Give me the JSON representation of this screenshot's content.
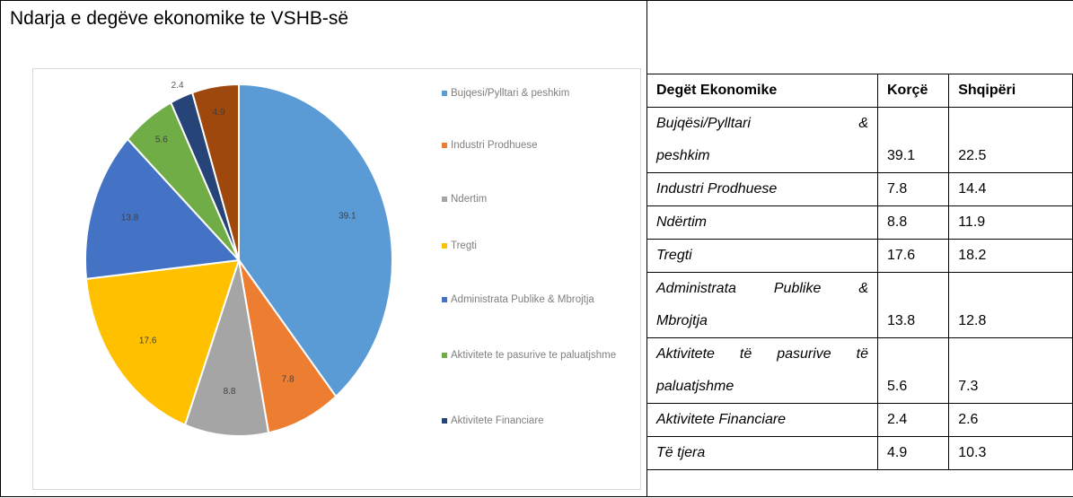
{
  "title": "Ndarja e degëve ekonomike te VSHB-së",
  "chart_data": {
    "type": "pie",
    "categories": [
      "Bujqesi/Pylltari & peshkim",
      "Industri Prodhuese",
      "Ndertim",
      "Tregti",
      "Administrata Publike & Mbrojtja",
      "Aktivitete te pasurive te paluatjshme",
      "Aktivitete Financiare",
      null
    ],
    "values": [
      39.1,
      7.8,
      8.8,
      17.6,
      13.8,
      5.6,
      2.4,
      4.9
    ],
    "colors": [
      "#5b9bd5",
      "#ed7d31",
      "#a5a5a5",
      "#ffc000",
      "#4472c4",
      "#70ad47",
      "#264478",
      "#9e480e"
    ],
    "legend": "right"
  },
  "table": {
    "header": [
      "Degët Ekonomike",
      "Korçë",
      "Shqipëri"
    ],
    "rows": [
      [
        [
          "Bujqësi/Pylltari &",
          "peshkim"
        ],
        "39.1",
        "22.5"
      ],
      [
        [
          "Industri Prodhuese"
        ],
        "7.8",
        "14.4"
      ],
      [
        [
          "Ndërtim"
        ],
        "8.8",
        "11.9"
      ],
      [
        [
          "Tregti"
        ],
        "17.6",
        "18.2"
      ],
      [
        [
          "Administrata Publike &",
          "Mbrojtja"
        ],
        "13.8",
        "12.8"
      ],
      [
        [
          "Aktivitete të pasurive të",
          "paluatjshme"
        ],
        "5.6",
        "7.3"
      ],
      [
        [
          "Aktivitete Financiare"
        ],
        "2.4",
        "2.6"
      ],
      [
        [
          "Të tjera"
        ],
        "4.9",
        "10.3"
      ]
    ]
  }
}
